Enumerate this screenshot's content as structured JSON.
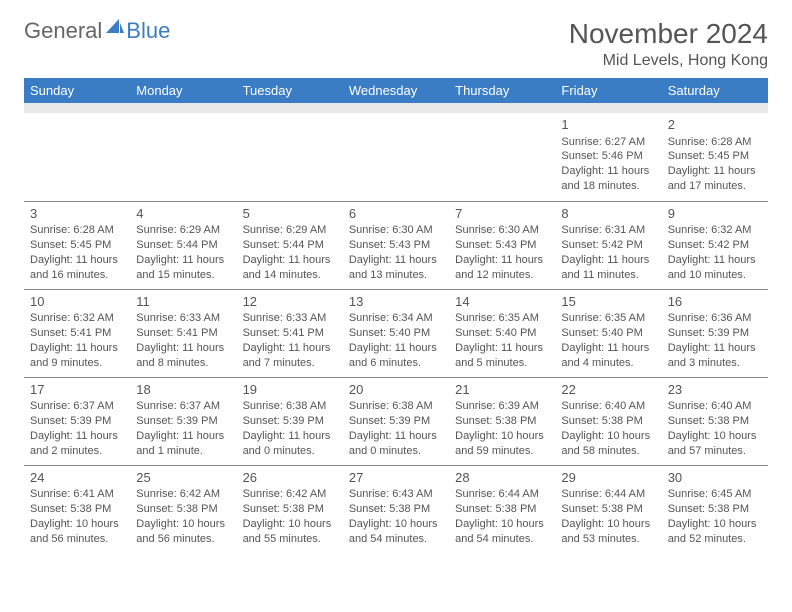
{
  "brand": {
    "part1": "General",
    "part2": "Blue",
    "color_general": "#666666",
    "color_blue": "#3b7dc4",
    "icon_color": "#3b7dc4"
  },
  "title": "November 2024",
  "location": "Mid Levels, Hong Kong",
  "colors": {
    "header_bg": "#3b7dc4",
    "header_text": "#ffffff",
    "body_text": "#555555",
    "spacer_bg": "#e8e8e8",
    "border_color": "#8a8a8a",
    "background": "#ffffff"
  },
  "fonts": {
    "title_size": 28,
    "location_size": 16,
    "dayheader_size": 13,
    "daynumber_size": 13,
    "dayinfo_size": 11
  },
  "day_names": [
    "Sunday",
    "Monday",
    "Tuesday",
    "Wednesday",
    "Thursday",
    "Friday",
    "Saturday"
  ],
  "weeks": [
    [
      null,
      null,
      null,
      null,
      null,
      {
        "n": "1",
        "sunrise": "6:27 AM",
        "sunset": "5:46 PM",
        "daylight": "11 hours and 18 minutes."
      },
      {
        "n": "2",
        "sunrise": "6:28 AM",
        "sunset": "5:45 PM",
        "daylight": "11 hours and 17 minutes."
      }
    ],
    [
      {
        "n": "3",
        "sunrise": "6:28 AM",
        "sunset": "5:45 PM",
        "daylight": "11 hours and 16 minutes."
      },
      {
        "n": "4",
        "sunrise": "6:29 AM",
        "sunset": "5:44 PM",
        "daylight": "11 hours and 15 minutes."
      },
      {
        "n": "5",
        "sunrise": "6:29 AM",
        "sunset": "5:44 PM",
        "daylight": "11 hours and 14 minutes."
      },
      {
        "n": "6",
        "sunrise": "6:30 AM",
        "sunset": "5:43 PM",
        "daylight": "11 hours and 13 minutes."
      },
      {
        "n": "7",
        "sunrise": "6:30 AM",
        "sunset": "5:43 PM",
        "daylight": "11 hours and 12 minutes."
      },
      {
        "n": "8",
        "sunrise": "6:31 AM",
        "sunset": "5:42 PM",
        "daylight": "11 hours and 11 minutes."
      },
      {
        "n": "9",
        "sunrise": "6:32 AM",
        "sunset": "5:42 PM",
        "daylight": "11 hours and 10 minutes."
      }
    ],
    [
      {
        "n": "10",
        "sunrise": "6:32 AM",
        "sunset": "5:41 PM",
        "daylight": "11 hours and 9 minutes."
      },
      {
        "n": "11",
        "sunrise": "6:33 AM",
        "sunset": "5:41 PM",
        "daylight": "11 hours and 8 minutes."
      },
      {
        "n": "12",
        "sunrise": "6:33 AM",
        "sunset": "5:41 PM",
        "daylight": "11 hours and 7 minutes."
      },
      {
        "n": "13",
        "sunrise": "6:34 AM",
        "sunset": "5:40 PM",
        "daylight": "11 hours and 6 minutes."
      },
      {
        "n": "14",
        "sunrise": "6:35 AM",
        "sunset": "5:40 PM",
        "daylight": "11 hours and 5 minutes."
      },
      {
        "n": "15",
        "sunrise": "6:35 AM",
        "sunset": "5:40 PM",
        "daylight": "11 hours and 4 minutes."
      },
      {
        "n": "16",
        "sunrise": "6:36 AM",
        "sunset": "5:39 PM",
        "daylight": "11 hours and 3 minutes."
      }
    ],
    [
      {
        "n": "17",
        "sunrise": "6:37 AM",
        "sunset": "5:39 PM",
        "daylight": "11 hours and 2 minutes."
      },
      {
        "n": "18",
        "sunrise": "6:37 AM",
        "sunset": "5:39 PM",
        "daylight": "11 hours and 1 minute."
      },
      {
        "n": "19",
        "sunrise": "6:38 AM",
        "sunset": "5:39 PM",
        "daylight": "11 hours and 0 minutes."
      },
      {
        "n": "20",
        "sunrise": "6:38 AM",
        "sunset": "5:39 PM",
        "daylight": "11 hours and 0 minutes."
      },
      {
        "n": "21",
        "sunrise": "6:39 AM",
        "sunset": "5:38 PM",
        "daylight": "10 hours and 59 minutes."
      },
      {
        "n": "22",
        "sunrise": "6:40 AM",
        "sunset": "5:38 PM",
        "daylight": "10 hours and 58 minutes."
      },
      {
        "n": "23",
        "sunrise": "6:40 AM",
        "sunset": "5:38 PM",
        "daylight": "10 hours and 57 minutes."
      }
    ],
    [
      {
        "n": "24",
        "sunrise": "6:41 AM",
        "sunset": "5:38 PM",
        "daylight": "10 hours and 56 minutes."
      },
      {
        "n": "25",
        "sunrise": "6:42 AM",
        "sunset": "5:38 PM",
        "daylight": "10 hours and 56 minutes."
      },
      {
        "n": "26",
        "sunrise": "6:42 AM",
        "sunset": "5:38 PM",
        "daylight": "10 hours and 55 minutes."
      },
      {
        "n": "27",
        "sunrise": "6:43 AM",
        "sunset": "5:38 PM",
        "daylight": "10 hours and 54 minutes."
      },
      {
        "n": "28",
        "sunrise": "6:44 AM",
        "sunset": "5:38 PM",
        "daylight": "10 hours and 54 minutes."
      },
      {
        "n": "29",
        "sunrise": "6:44 AM",
        "sunset": "5:38 PM",
        "daylight": "10 hours and 53 minutes."
      },
      {
        "n": "30",
        "sunrise": "6:45 AM",
        "sunset": "5:38 PM",
        "daylight": "10 hours and 52 minutes."
      }
    ]
  ]
}
